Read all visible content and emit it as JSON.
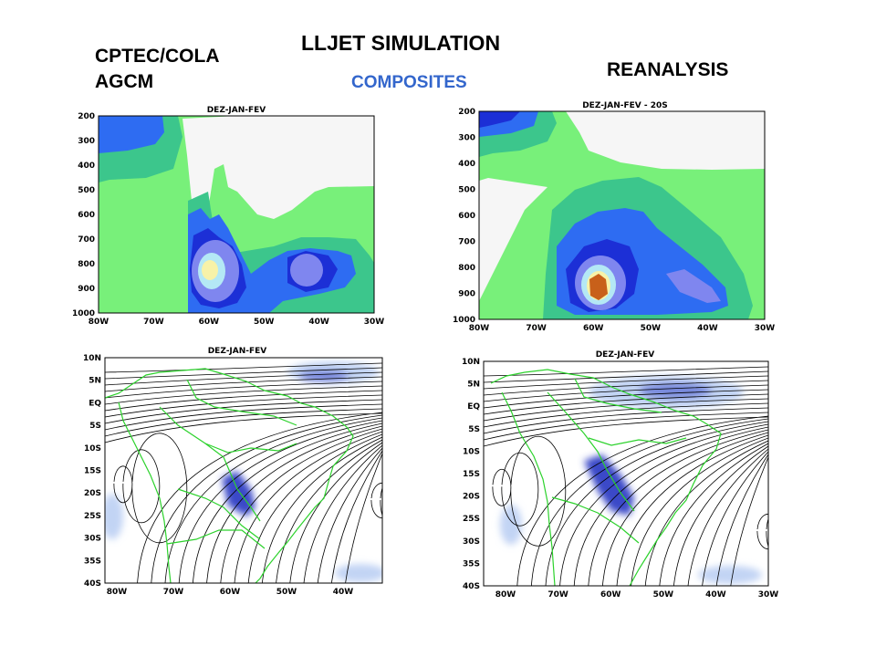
{
  "header": {
    "title": "LLJET  SIMULATION",
    "subtitle": "COMPOSITES",
    "left_line1": "CPTEC/COLA",
    "left_line2": "AGCM",
    "right_label": "REANALYSIS"
  },
  "colors": {
    "background": "#ffffff",
    "subtitle": "#3366cc",
    "level_1": "#78f07a",
    "level_2": "#3cc68c",
    "level_3": "#2e6cf2",
    "level_4": "#1c2fd6",
    "level_5": "#7f86ef",
    "level_6": "#b4e8f5",
    "level_7": "#f7f2a8",
    "level_8": "#c8601a",
    "coastline": "#2cd22c",
    "streamline": "#000000",
    "map_shade_light": "#c2d4f4",
    "map_shade_dark": "#3a48c8"
  },
  "chart_data": [
    {
      "type": "heatmap",
      "title": "DEZ-JAN-FEV",
      "source": "CPTEC/COLA AGCM",
      "x_ticks": [
        "80W",
        "70W",
        "60W",
        "50W",
        "40W",
        "30W"
      ],
      "y_ticks": [
        "200",
        "300",
        "400",
        "500",
        "600",
        "700",
        "800",
        "900",
        "1000"
      ],
      "xlim": [
        -80,
        -30
      ],
      "ylim": [
        1000,
        200
      ],
      "grid": false,
      "maxima": [
        {
          "lon": -60,
          "level": 840,
          "category": 7
        },
        {
          "lon": -44,
          "level": 830,
          "category": 5
        }
      ]
    },
    {
      "type": "heatmap",
      "title": "DEZ-JAN-FEV - 20S",
      "source": "REANALYSIS",
      "x_ticks": [
        "80W",
        "70W",
        "60W",
        "50W",
        "40W",
        "30W"
      ],
      "y_ticks": [
        "200",
        "300",
        "400",
        "500",
        "600",
        "700",
        "800",
        "900",
        "1000"
      ],
      "xlim": [
        -80,
        -30
      ],
      "ylim": [
        1000,
        200
      ],
      "grid": false,
      "maxima": [
        {
          "lon": -59,
          "level": 880,
          "category": 8
        }
      ]
    },
    {
      "type": "streamline-map",
      "title": "DEZ-JAN-FEV",
      "source": "CPTEC/COLA AGCM",
      "x_ticks": [
        "80W",
        "70W",
        "60W",
        "50W",
        "40W"
      ],
      "y_ticks": [
        "10N",
        "5N",
        "EQ",
        "5S",
        "10S",
        "15S",
        "20S",
        "25S",
        "30S",
        "35S",
        "40S"
      ],
      "xlim": [
        -84,
        -35
      ],
      "ylim": [
        -40,
        10
      ],
      "shaded_max": {
        "lon": -61,
        "lat": -19
      }
    },
    {
      "type": "streamline-map",
      "title": "DEZ-JAN-FEV",
      "source": "REANALYSIS",
      "x_ticks": [
        "80W",
        "70W",
        "60W",
        "50W",
        "40W",
        "30W"
      ],
      "y_ticks": [
        "10N",
        "5N",
        "EQ",
        "5S",
        "10S",
        "15S",
        "20S",
        "25S",
        "30S",
        "35S",
        "40S"
      ],
      "xlim": [
        -85,
        -30
      ],
      "ylim": [
        -40,
        10
      ],
      "shaded_max": {
        "lon": -60,
        "lat": -18
      }
    }
  ]
}
